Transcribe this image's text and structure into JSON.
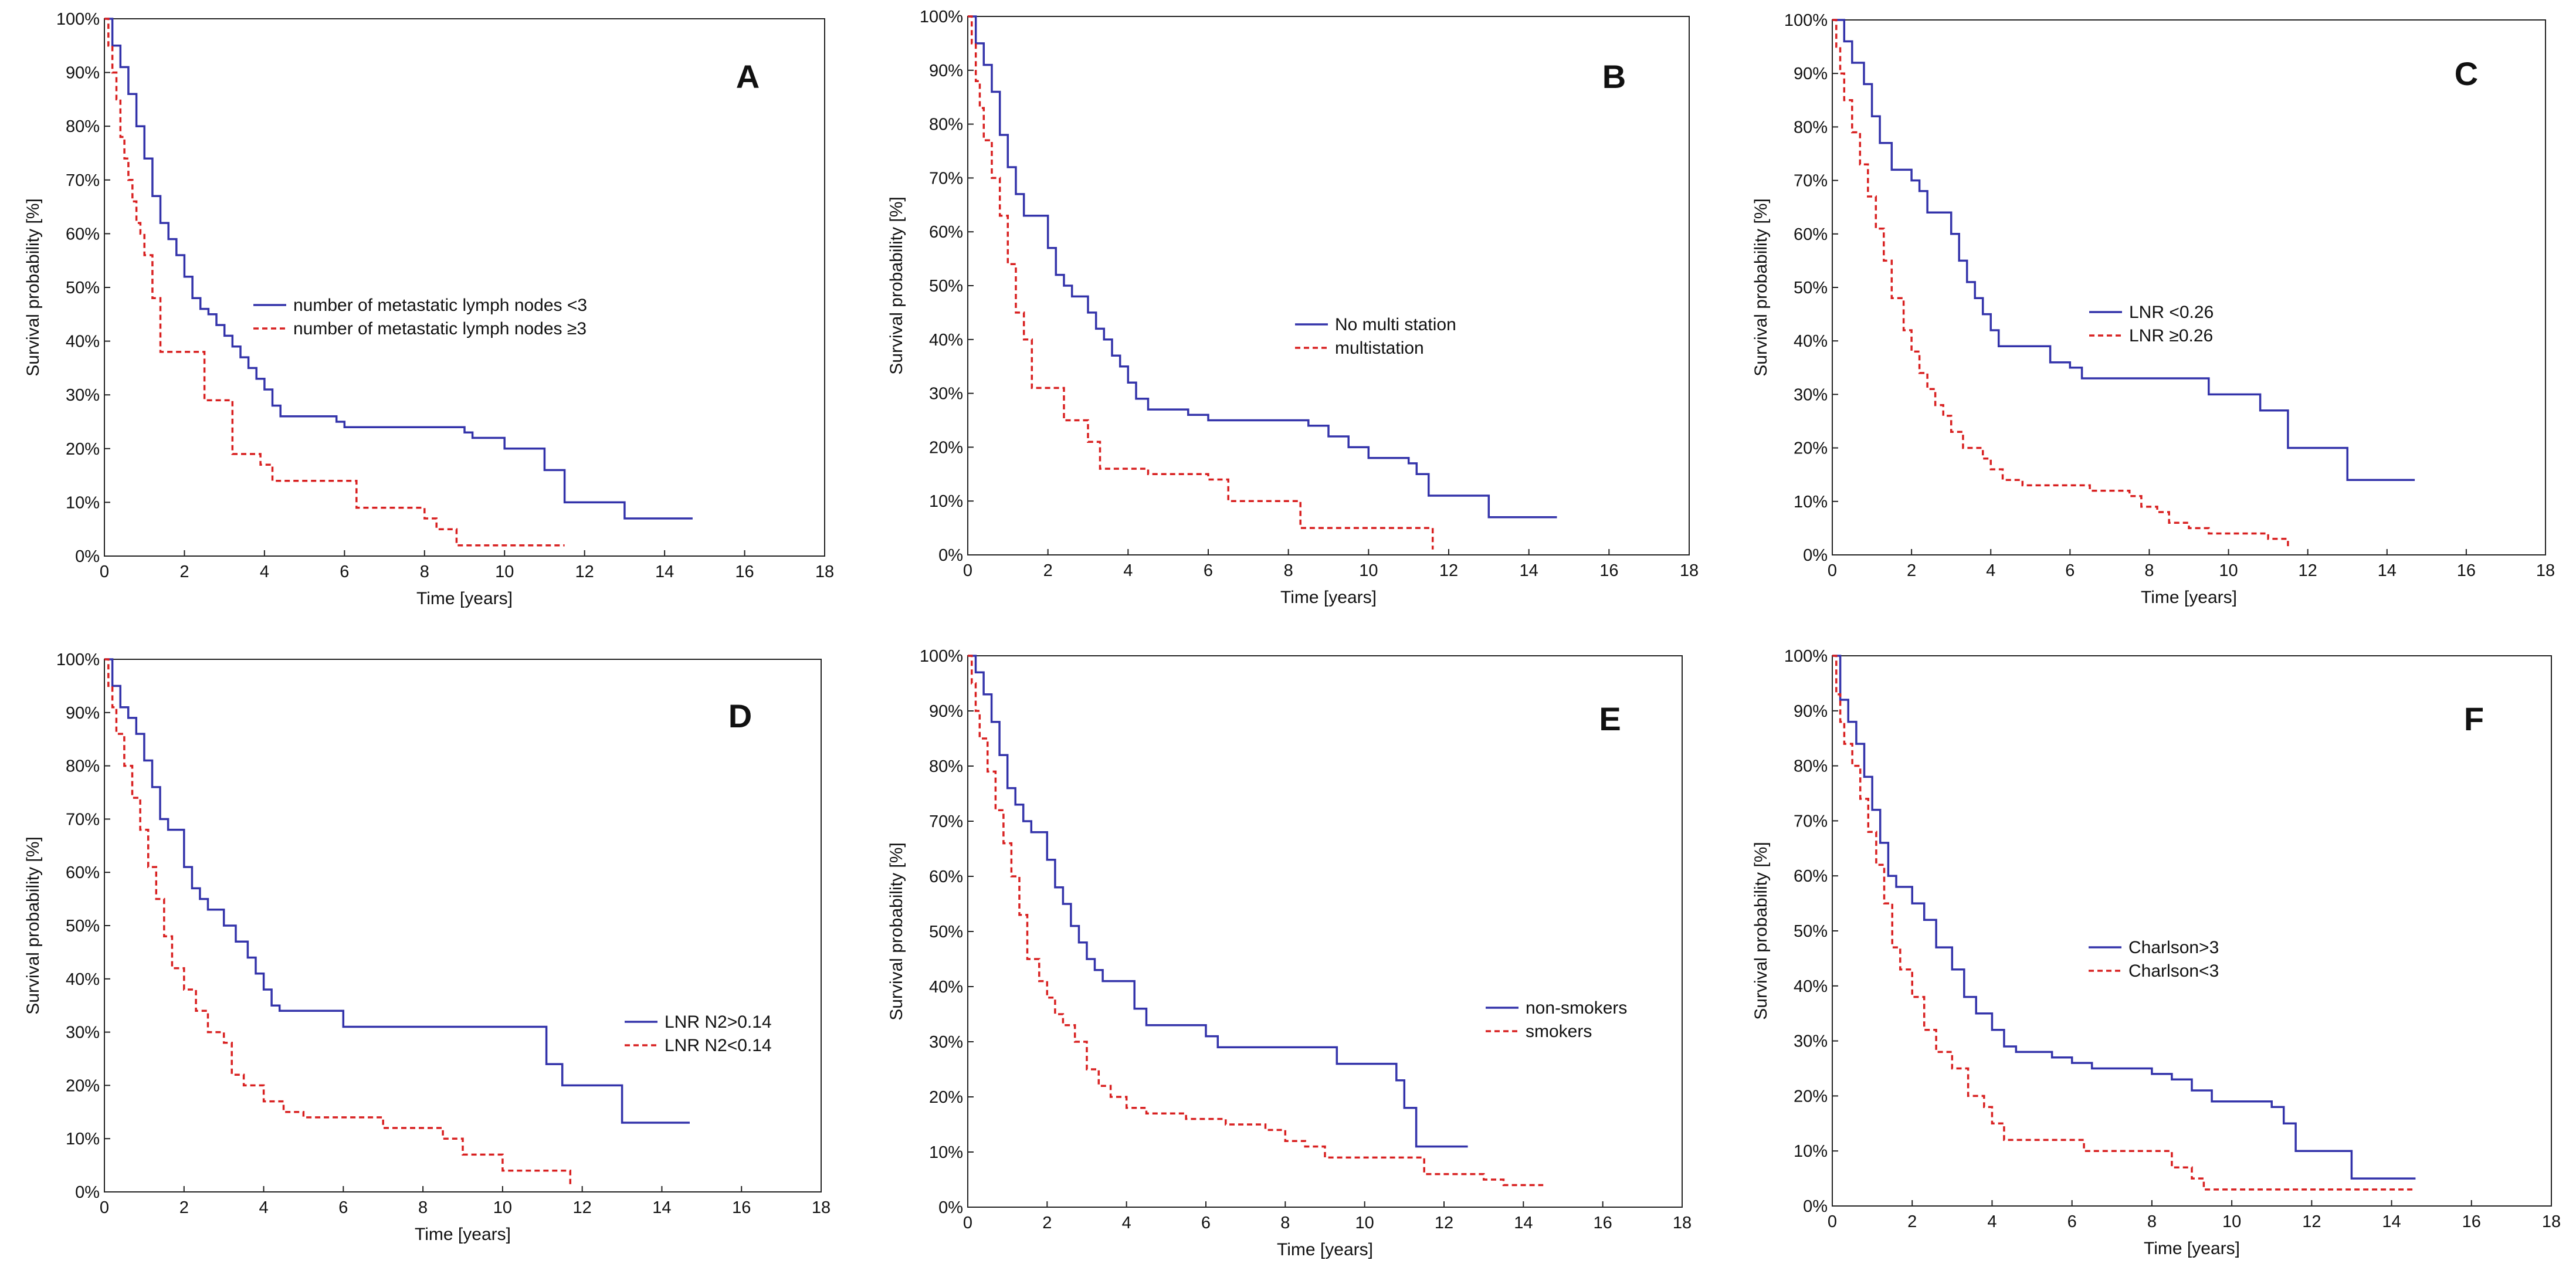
{
  "figure": {
    "xlabel": "Time [years]",
    "ylabel": "Survival probability [%]"
  },
  "chart_data": [
    {
      "type": "line",
      "panel": "A",
      "xlabel": "Time [years]",
      "ylabel": "Survival probability [%]",
      "xlim": [
        0,
        18
      ],
      "ylim": [
        0,
        100
      ],
      "x_ticks": [
        "0",
        "2",
        "4",
        "6",
        "8",
        "10",
        "12",
        "14",
        "16",
        "18"
      ],
      "y_ticks": [
        "0%",
        "10%",
        "20%",
        "30%",
        "40%",
        "50%",
        "60%",
        "70%",
        "80%",
        "90%",
        "100%"
      ],
      "legend": [
        "number of metastatic lymph nodes <3",
        "number of metastatic lymph nodes ≥3"
      ],
      "series": [
        {
          "name": "number of metastatic lymph nodes <3",
          "color": "#3333aa",
          "style": "solid",
          "x": [
            0,
            0.2,
            0.4,
            0.6,
            0.8,
            1.0,
            1.2,
            1.4,
            1.6,
            1.8,
            2.0,
            2.2,
            2.4,
            2.6,
            2.8,
            3.0,
            3.2,
            3.4,
            3.6,
            3.8,
            4.0,
            4.2,
            4.4,
            4.6,
            5.0,
            5.8,
            6.0,
            8.5,
            9.0,
            9.2,
            10.0,
            10.5,
            11.0,
            11.5,
            13.0,
            14.7
          ],
          "y": [
            100,
            95,
            91,
            86,
            80,
            74,
            67,
            62,
            59,
            56,
            52,
            48,
            46,
            45,
            43,
            41,
            39,
            37,
            35,
            33,
            31,
            28,
            26,
            26,
            26,
            25,
            24,
            24,
            23,
            22,
            20,
            20,
            16,
            10,
            7,
            7
          ]
        },
        {
          "name": "number of metastatic lymph nodes ≥3",
          "color": "#d82020",
          "style": "dashed",
          "x": [
            0,
            0.1,
            0.2,
            0.3,
            0.4,
            0.5,
            0.6,
            0.7,
            0.8,
            0.9,
            1.0,
            1.2,
            1.4,
            2.3,
            2.5,
            3.0,
            3.2,
            3.5,
            3.9,
            4.0,
            4.2,
            4.8,
            6.3,
            7.6,
            8.0,
            8.3,
            8.8,
            11.5
          ],
          "y": [
            100,
            95,
            90,
            85,
            78,
            74,
            70,
            66,
            62,
            60,
            56,
            48,
            38,
            38,
            29,
            29,
            19,
            19,
            17,
            17,
            14,
            14,
            9,
            9,
            7,
            5,
            2,
            2
          ]
        }
      ]
    },
    {
      "type": "line",
      "panel": "B",
      "xlabel": "Time [years]",
      "ylabel": "Survival probability [%]",
      "xlim": [
        0,
        18
      ],
      "ylim": [
        0,
        100
      ],
      "x_ticks": [
        "0",
        "2",
        "4",
        "6",
        "8",
        "10",
        "12",
        "14",
        "16",
        "18"
      ],
      "y_ticks": [
        "0%",
        "10%",
        "20%",
        "30%",
        "40%",
        "50%",
        "60%",
        "70%",
        "80%",
        "90%",
        "100%"
      ],
      "legend": [
        "No multi station",
        "multistation"
      ],
      "series": [
        {
          "name": "No multi station",
          "color": "#3333aa",
          "style": "solid",
          "x": [
            0,
            0.2,
            0.4,
            0.6,
            0.8,
            1.0,
            1.2,
            1.4,
            1.6,
            2.0,
            2.2,
            2.4,
            2.6,
            3.0,
            3.2,
            3.4,
            3.6,
            3.8,
            4.0,
            4.2,
            4.5,
            5.5,
            6.0,
            8.0,
            8.5,
            9.0,
            9.5,
            10.0,
            11.0,
            11.2,
            11.5,
            13.0,
            14.7
          ],
          "y": [
            100,
            95,
            91,
            86,
            78,
            72,
            67,
            63,
            63,
            57,
            52,
            50,
            48,
            45,
            42,
            40,
            37,
            35,
            32,
            29,
            27,
            26,
            25,
            25,
            24,
            22,
            20,
            18,
            17,
            15,
            11,
            7,
            7
          ]
        },
        {
          "name": "multistation",
          "color": "#d82020",
          "style": "dashed",
          "x": [
            0,
            0.1,
            0.2,
            0.3,
            0.4,
            0.6,
            0.8,
            1.0,
            1.2,
            1.4,
            1.6,
            2.4,
            3.0,
            3.3,
            4.5,
            6.0,
            6.5,
            8.0,
            8.3,
            11.3,
            11.6
          ],
          "y": [
            100,
            95,
            88,
            83,
            77,
            70,
            63,
            54,
            45,
            40,
            31,
            25,
            21,
            16,
            15,
            14,
            10,
            10,
            5,
            5,
            1
          ]
        }
      ]
    },
    {
      "type": "line",
      "panel": "C",
      "xlabel": "Time [years]",
      "ylabel": "Survival probability [%]",
      "xlim": [
        0,
        18
      ],
      "ylim": [
        0,
        100
      ],
      "x_ticks": [
        "0",
        "2",
        "4",
        "6",
        "8",
        "10",
        "12",
        "14",
        "16",
        "18"
      ],
      "y_ticks": [
        "0%",
        "10%",
        "20%",
        "30%",
        "40%",
        "50%",
        "60%",
        "70%",
        "80%",
        "90%",
        "100%"
      ],
      "legend": [
        "LNR <0.26",
        "LNR ≥0.26"
      ],
      "series": [
        {
          "name": "LNR <0.26",
          "color": "#3333aa",
          "style": "solid",
          "x": [
            0,
            0.3,
            0.5,
            0.8,
            1.0,
            1.2,
            1.5,
            2.0,
            2.2,
            2.4,
            3.0,
            3.2,
            3.4,
            3.6,
            3.8,
            4.0,
            4.2,
            4.5,
            5.5,
            6.0,
            6.3,
            8.0,
            9.5,
            10.8,
            11.5,
            13.0,
            14.7
          ],
          "y": [
            100,
            96,
            92,
            88,
            82,
            77,
            72,
            70,
            68,
            64,
            60,
            55,
            51,
            48,
            45,
            42,
            39,
            39,
            36,
            35,
            33,
            33,
            30,
            27,
            20,
            14,
            14
          ]
        },
        {
          "name": "LNR ≥0.26",
          "color": "#d82020",
          "style": "dashed",
          "x": [
            0,
            0.1,
            0.2,
            0.3,
            0.5,
            0.7,
            0.9,
            1.1,
            1.3,
            1.5,
            1.8,
            2.0,
            2.2,
            2.4,
            2.6,
            2.8,
            3.0,
            3.3,
            3.8,
            4.0,
            4.3,
            4.8,
            5.3,
            6.5,
            7.5,
            7.8,
            8.2,
            8.5,
            9.0,
            9.5,
            10.5,
            11.0,
            11.5
          ],
          "y": [
            100,
            95,
            90,
            85,
            79,
            73,
            67,
            61,
            55,
            48,
            42,
            38,
            34,
            31,
            28,
            26,
            23,
            20,
            18,
            16,
            14,
            13,
            13,
            12,
            11,
            9,
            8,
            6,
            5,
            4,
            4,
            3,
            1
          ]
        }
      ]
    },
    {
      "type": "line",
      "panel": "D",
      "xlabel": "Time [years]",
      "ylabel": "Survival probability [%]",
      "xlim": [
        0,
        18
      ],
      "ylim": [
        0,
        100
      ],
      "x_ticks": [
        "0",
        "2",
        "4",
        "6",
        "8",
        "10",
        "12",
        "14",
        "16",
        "18"
      ],
      "y_ticks": [
        "0%",
        "10%",
        "20%",
        "30%",
        "40%",
        "50%",
        "60%",
        "70%",
        "80%",
        "90%",
        "100%"
      ],
      "legend": [
        "LNR N2>0.14",
        "LNR N2<0.14"
      ],
      "series": [
        {
          "name": "LNR N2>0.14",
          "color": "#3333aa",
          "style": "solid",
          "x": [
            0,
            0.2,
            0.4,
            0.6,
            0.8,
            1.0,
            1.2,
            1.4,
            1.6,
            2.0,
            2.2,
            2.4,
            2.6,
            3.0,
            3.3,
            3.6,
            3.8,
            4.0,
            4.2,
            4.4,
            5.0,
            6.0,
            10.9,
            11.1,
            11.5,
            13.0,
            14.7
          ],
          "y": [
            100,
            95,
            91,
            89,
            86,
            81,
            76,
            70,
            68,
            61,
            57,
            55,
            53,
            50,
            47,
            44,
            41,
            38,
            35,
            34,
            34,
            31,
            31,
            24,
            20,
            13,
            13
          ]
        },
        {
          "name": "LNR N2<0.14",
          "color": "#d82020",
          "style": "dashed",
          "x": [
            0,
            0.1,
            0.2,
            0.3,
            0.5,
            0.7,
            0.9,
            1.1,
            1.3,
            1.5,
            1.7,
            2.0,
            2.3,
            2.6,
            3.0,
            3.2,
            3.5,
            4.0,
            4.5,
            5.0,
            6.3,
            7.0,
            8.0,
            8.5,
            9.0,
            10.0,
            11.5,
            11.7
          ],
          "y": [
            100,
            95,
            91,
            86,
            80,
            74,
            68,
            61,
            55,
            48,
            42,
            38,
            34,
            30,
            28,
            22,
            20,
            17,
            15,
            14,
            14,
            12,
            12,
            10,
            7,
            4,
            4,
            1
          ]
        }
      ]
    },
    {
      "type": "line",
      "panel": "E",
      "xlabel": "Time [years]",
      "ylabel": "Survival probability [%]",
      "xlim": [
        0,
        18
      ],
      "ylim": [
        0,
        100
      ],
      "x_ticks": [
        "0",
        "2",
        "4",
        "6",
        "8",
        "10",
        "12",
        "14",
        "16",
        "18"
      ],
      "y_ticks": [
        "0%",
        "10%",
        "20%",
        "30%",
        "40%",
        "50%",
        "60%",
        "70%",
        "80%",
        "90%",
        "100%"
      ],
      "legend": [
        "non-smokers",
        "smokers"
      ],
      "series": [
        {
          "name": "non-smokers",
          "color": "#3333aa",
          "style": "solid",
          "x": [
            0,
            0.2,
            0.4,
            0.6,
            0.8,
            1.0,
            1.2,
            1.4,
            1.6,
            2.0,
            2.2,
            2.4,
            2.6,
            2.8,
            3.0,
            3.2,
            3.4,
            3.6,
            4.2,
            4.5,
            5.5,
            6.0,
            6.3,
            8.5,
            9.3,
            10.8,
            11.0,
            11.3,
            12.6
          ],
          "y": [
            100,
            97,
            93,
            88,
            82,
            76,
            73,
            70,
            68,
            63,
            58,
            55,
            51,
            48,
            45,
            43,
            41,
            41,
            36,
            33,
            33,
            31,
            29,
            29,
            26,
            23,
            18,
            11,
            11
          ]
        },
        {
          "name": "smokers",
          "color": "#d82020",
          "style": "dashed",
          "x": [
            0,
            0.1,
            0.2,
            0.3,
            0.5,
            0.7,
            0.9,
            1.1,
            1.3,
            1.5,
            1.8,
            2.0,
            2.2,
            2.4,
            2.7,
            3.0,
            3.3,
            3.6,
            4.0,
            4.5,
            5.5,
            6.5,
            7.5,
            8.0,
            8.5,
            9.0,
            11.5,
            13.0,
            13.5,
            14.5
          ],
          "y": [
            100,
            95,
            90,
            85,
            79,
            72,
            66,
            60,
            53,
            45,
            41,
            38,
            35,
            33,
            30,
            25,
            22,
            20,
            18,
            17,
            16,
            15,
            14,
            12,
            11,
            9,
            6,
            5,
            4,
            4
          ]
        }
      ]
    },
    {
      "type": "line",
      "panel": "F",
      "xlabel": "Time [years]",
      "ylabel": "Survival probability [%]",
      "xlim": [
        0,
        18
      ],
      "ylim": [
        0,
        100
      ],
      "x_ticks": [
        "0",
        "2",
        "4",
        "6",
        "8",
        "10",
        "12",
        "14",
        "16",
        "18"
      ],
      "y_ticks": [
        "0%",
        "10%",
        "20%",
        "30%",
        "40%",
        "50%",
        "60%",
        "70%",
        "80%",
        "90%",
        "100%"
      ],
      "legend": [
        "Charlson>3",
        "Charlson<3"
      ],
      "series": [
        {
          "name": "Charlson>3",
          "color": "#3333aa",
          "style": "solid",
          "x": [
            0,
            0.2,
            0.4,
            0.6,
            0.8,
            1.0,
            1.2,
            1.4,
            1.6,
            2.0,
            2.3,
            2.6,
            3.0,
            3.3,
            3.6,
            4.0,
            4.3,
            4.6,
            5.5,
            6.0,
            6.5,
            8.0,
            8.5,
            9.0,
            9.5,
            11.0,
            11.3,
            11.6,
            13.0,
            14.6
          ],
          "y": [
            100,
            92,
            88,
            84,
            78,
            72,
            66,
            60,
            58,
            55,
            52,
            47,
            43,
            38,
            35,
            32,
            29,
            28,
            27,
            26,
            25,
            24,
            23,
            21,
            19,
            18,
            15,
            10,
            5,
            5
          ]
        },
        {
          "name": "Charlson<3",
          "color": "#d82020",
          "style": "dashed",
          "x": [
            0,
            0.1,
            0.2,
            0.3,
            0.5,
            0.7,
            0.9,
            1.1,
            1.3,
            1.5,
            1.7,
            2.0,
            2.3,
            2.6,
            3.0,
            3.4,
            3.8,
            4.0,
            4.3,
            5.0,
            6.3,
            7.0,
            8.5,
            9.0,
            9.3,
            11.0,
            14.6
          ],
          "y": [
            100,
            93,
            88,
            84,
            80,
            74,
            68,
            62,
            55,
            47,
            43,
            38,
            32,
            28,
            25,
            20,
            18,
            15,
            12,
            12,
            10,
            10,
            7,
            5,
            3,
            3,
            3
          ]
        }
      ]
    }
  ]
}
